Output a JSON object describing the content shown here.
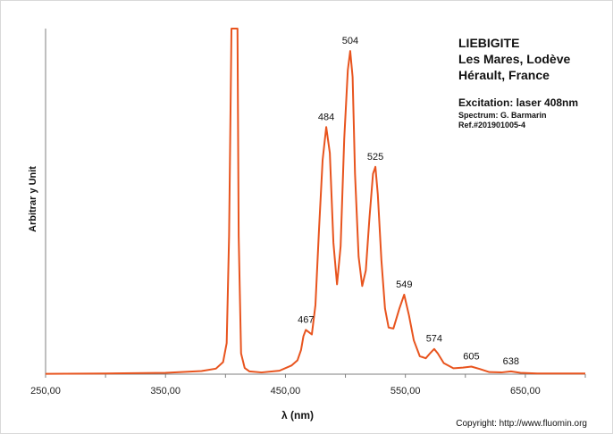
{
  "chart_data": {
    "type": "line",
    "title_lines": [
      "LIEBIGITE",
      "Les Mares, Lodève",
      "Hérault, France"
    ],
    "excitation": "Excitation:  laser 408nm",
    "spectrum_credit": "Spectrum: G. Barmarin",
    "reference": "Ref.#201901005-4",
    "xlabel": "λ (nm)",
    "ylabel": "Arbitrar y Unit",
    "copyright": "Copyright: http://www.fluomin.org",
    "xlim": [
      250,
      700
    ],
    "ylim": [
      0,
      100
    ],
    "x_ticks": [
      250,
      350,
      450,
      550,
      650
    ],
    "x_tick_labels": [
      "250,00",
      "350,00",
      "450,00",
      "550,00",
      "650,00"
    ],
    "grid": false,
    "line_color": "#e8541e",
    "peaks": [
      {
        "x": 467,
        "y": 12.8,
        "label": "467"
      },
      {
        "x": 484,
        "y": 71.5,
        "label": "484"
      },
      {
        "x": 504,
        "y": 93.5,
        "label": "504"
      },
      {
        "x": 525,
        "y": 60.0,
        "label": "525"
      },
      {
        "x": 549,
        "y": 23.0,
        "label": "549"
      },
      {
        "x": 574,
        "y": 7.3,
        "label": "574"
      },
      {
        "x": 605,
        "y": 2.2,
        "label": "605"
      },
      {
        "x": 638,
        "y": 0.8,
        "label": "638"
      }
    ],
    "series": [
      {
        "x": [
          250,
          300,
          350,
          380,
          392,
          398,
          401,
          403,
          405,
          406,
          407,
          408,
          409,
          410,
          411,
          413,
          416,
          420,
          430,
          445,
          455,
          460,
          463,
          465,
          467,
          469,
          472,
          475,
          478,
          481,
          484,
          487,
          490,
          493,
          496,
          499,
          502,
          504,
          506,
          508,
          511,
          514,
          517,
          520,
          523,
          525,
          527,
          530,
          533,
          536,
          540,
          545,
          549,
          553,
          557,
          562,
          567,
          571,
          574,
          577,
          582,
          590,
          598,
          605,
          612,
          620,
          630,
          638,
          646,
          660,
          680,
          700
        ],
        "y": [
          0.1,
          0.2,
          0.4,
          0.9,
          1.6,
          3.5,
          9.0,
          40.0,
          100,
          100,
          100,
          100,
          100,
          100,
          40.0,
          6.0,
          1.8,
          0.8,
          0.5,
          1.0,
          2.5,
          4.0,
          7.0,
          11.0,
          12.8,
          12.3,
          11.5,
          20.0,
          42.0,
          62.0,
          71.5,
          64.0,
          38.0,
          26.0,
          37.0,
          68.0,
          88.0,
          93.5,
          86.0,
          58.0,
          34.0,
          25.5,
          30.0,
          45.0,
          58.0,
          60.0,
          52.0,
          33.0,
          19.0,
          13.5,
          13.2,
          19.0,
          23.0,
          17.0,
          9.8,
          5.2,
          4.6,
          6.2,
          7.3,
          6.0,
          3.2,
          1.7,
          1.9,
          2.2,
          1.5,
          0.6,
          0.5,
          0.8,
          0.4,
          0.2,
          0.2,
          0.2
        ]
      }
    ]
  }
}
